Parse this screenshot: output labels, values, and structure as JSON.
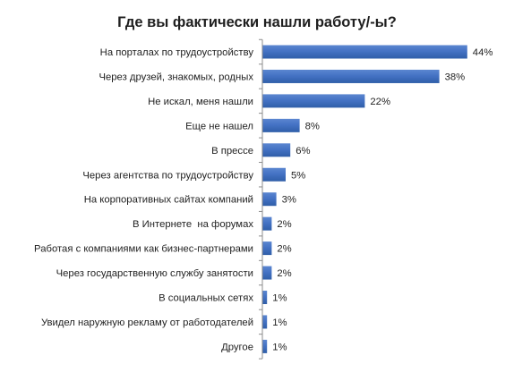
{
  "chart_data": {
    "type": "bar",
    "orientation": "horizontal",
    "title": "Где вы фактически нашли работу/-ы?",
    "xlabel": "",
    "ylabel": "",
    "xlim": [
      0,
      44
    ],
    "grid": false,
    "legend": "none",
    "value_suffix": "%",
    "categories": [
      "На порталах по трудоустройству",
      "Через друзей, знакомых, родных",
      "Не искал, меня нашли",
      "Еще не нашел",
      "В прессе",
      "Через агентства по трудоустройству",
      "На корпоративных сайтах компаний",
      "В Интернете  на форумах",
      "Работая с компаниями как бизнес-партнерами",
      "Через государственную службу занятости",
      "В социальных сетях",
      "Увидел наружную рекламу от работодателей",
      "Другое"
    ],
    "values": [
      44,
      38,
      22,
      8,
      6,
      5,
      3,
      2,
      2,
      2,
      1,
      1,
      1
    ],
    "colors": {
      "bar": "#4472c4",
      "bar_top": "#5b86d0",
      "bar_bottom": "#2f5ea8",
      "text": "#1f1f1f",
      "axis": "#8c8c8c",
      "background": "#ffffff"
    }
  }
}
